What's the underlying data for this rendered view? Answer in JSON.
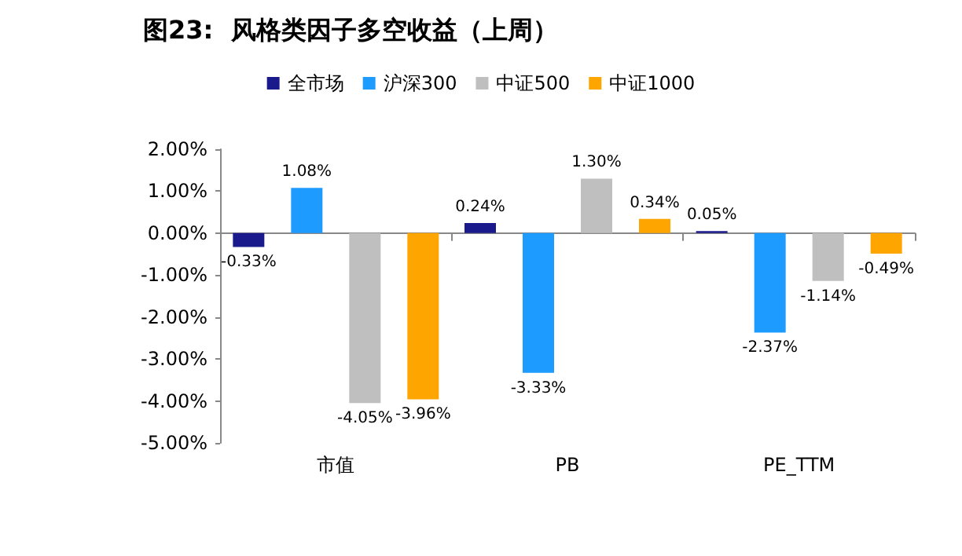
{
  "chart_data": {
    "type": "bar",
    "title": "图23:  风格类因子多空收益（上周）",
    "categories": [
      "市值",
      "PB",
      "PE_TTM"
    ],
    "series": [
      {
        "name": "全市场",
        "color": "#1a1a8c",
        "values": [
          -0.33,
          0.24,
          0.05
        ],
        "value_labels": [
          "-0.33%",
          "0.24%",
          "0.05%"
        ]
      },
      {
        "name": "沪深300",
        "color": "#1e9bff",
        "values": [
          1.08,
          -3.33,
          -2.37
        ],
        "value_labels": [
          "1.08%",
          "-3.33%",
          "-2.37%"
        ]
      },
      {
        "name": "中证500",
        "color": "#bfbfbf",
        "values": [
          -4.05,
          1.3,
          -1.14
        ],
        "value_labels": [
          "-4.05%",
          "1.30%",
          "-1.14%"
        ]
      },
      {
        "name": "中证1000",
        "color": "#ffa500",
        "values": [
          -3.96,
          0.34,
          -0.49
        ],
        "value_labels": [
          "-3.96%",
          "0.34%",
          "-0.49%"
        ]
      }
    ],
    "ylim": [
      -5,
      2
    ],
    "yticks": [
      {
        "value": -5,
        "label": "-5.00%"
      },
      {
        "value": -4,
        "label": "-4.00%"
      },
      {
        "value": -3,
        "label": "-3.00%"
      },
      {
        "value": -2,
        "label": "-2.00%"
      },
      {
        "value": -1,
        "label": "-1.00%"
      },
      {
        "value": 0,
        "label": "0.00%"
      },
      {
        "value": 1,
        "label": "1.00%"
      },
      {
        "value": 2,
        "label": "2.00%"
      }
    ],
    "legend": "top"
  }
}
